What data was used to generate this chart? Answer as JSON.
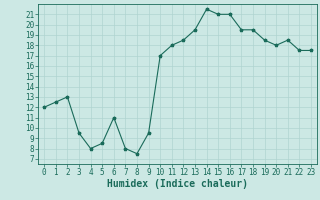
{
  "x": [
    0,
    1,
    2,
    3,
    4,
    5,
    6,
    7,
    8,
    9,
    10,
    11,
    12,
    13,
    14,
    15,
    16,
    17,
    18,
    19,
    20,
    21,
    22,
    23
  ],
  "y": [
    12,
    12.5,
    13,
    9.5,
    8,
    8.5,
    11,
    8,
    7.5,
    9.5,
    17,
    18,
    18.5,
    19.5,
    21.5,
    21,
    21,
    19.5,
    19.5,
    18.5,
    18,
    18.5,
    17.5,
    17.5
  ],
  "line_color": "#1a6b5a",
  "marker": "*",
  "bg_color": "#cce8e4",
  "grid_color": "#b0d4d0",
  "xlabel": "Humidex (Indice chaleur)",
  "ylim": [
    6.5,
    22
  ],
  "xlim": [
    -0.5,
    23.5
  ],
  "yticks": [
    7,
    8,
    9,
    10,
    11,
    12,
    13,
    14,
    15,
    16,
    17,
    18,
    19,
    20,
    21
  ],
  "xticks": [
    0,
    1,
    2,
    3,
    4,
    5,
    6,
    7,
    8,
    9,
    10,
    11,
    12,
    13,
    14,
    15,
    16,
    17,
    18,
    19,
    20,
    21,
    22,
    23
  ],
  "tick_fontsize": 5.5,
  "xlabel_fontsize": 7,
  "axis_color": "#1a6b5a"
}
